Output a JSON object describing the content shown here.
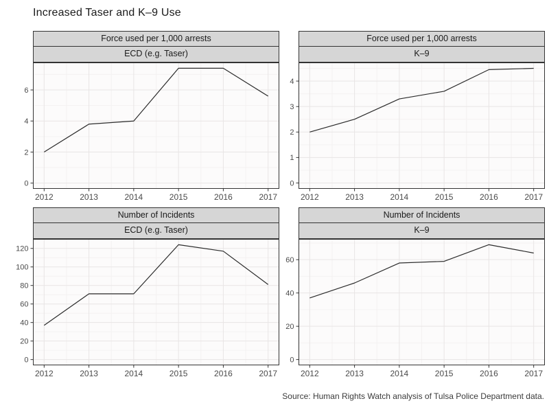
{
  "page": {
    "title": "Increased Taser and K–9 Use",
    "source": "Source: Human Rights Watch analysis of Tulsa Police Department data."
  },
  "chart_data": {
    "type": "line",
    "layout": "2x2 facet grid: measure (rows) by weapon type (columns), free y scales, grid on, no legend",
    "title": "Increased Taser and K–9 Use",
    "x_label": "",
    "y_label": "",
    "x": [
      2012,
      2013,
      2014,
      2015,
      2016,
      2017
    ],
    "xlim": [
      2011.75,
      2017.25
    ],
    "x_minor_breaks": [
      2012.5,
      2013.5,
      2014.5,
      2015.5,
      2016.5
    ],
    "panels": [
      {
        "row_header": "Force used per 1,000 arrests",
        "col_header": "ECD (e.g. Taser)",
        "series_name": "ECD force rate per 1,000 arrests",
        "y": [
          2.0,
          3.8,
          4.0,
          7.4,
          7.4,
          5.6
        ],
        "yticks": [
          0,
          2,
          4,
          6
        ],
        "ylim": [
          -0.37,
          7.77
        ]
      },
      {
        "row_header": "Force used per 1,000 arrests",
        "col_header": "K–9",
        "series_name": "K-9 force rate per 1,000 arrests",
        "y": [
          2.0,
          2.5,
          3.3,
          3.6,
          4.45,
          4.5
        ],
        "yticks": [
          0,
          1,
          2,
          3,
          4
        ],
        "ylim": [
          -0.23,
          4.73
        ]
      },
      {
        "row_header": "Number of Incidents",
        "col_header": "ECD (e.g. Taser)",
        "series_name": "ECD incidents",
        "y": [
          37,
          71,
          71,
          124,
          117,
          81
        ],
        "yticks": [
          0,
          20,
          40,
          60,
          80,
          100,
          120
        ],
        "ylim": [
          -6.2,
          130.2
        ]
      },
      {
        "row_header": "Number of Incidents",
        "col_header": "K–9",
        "series_name": "K-9 incidents",
        "y": [
          37,
          46,
          58,
          59,
          69,
          64
        ],
        "yticks": [
          0,
          20,
          40,
          60
        ],
        "ylim": [
          -3.45,
          72.45
        ]
      }
    ],
    "colors": {
      "line": "#2b2b2b",
      "panel_background": "#fcfbfb",
      "grid_major": "#e8e5e5",
      "grid_minor": "#f4f2f2",
      "panel_border": "#333333",
      "strip_background": "#d6d6d6",
      "strip_border": "#333333",
      "tick": "#333333",
      "tick_label": "#4a4a4a"
    }
  }
}
